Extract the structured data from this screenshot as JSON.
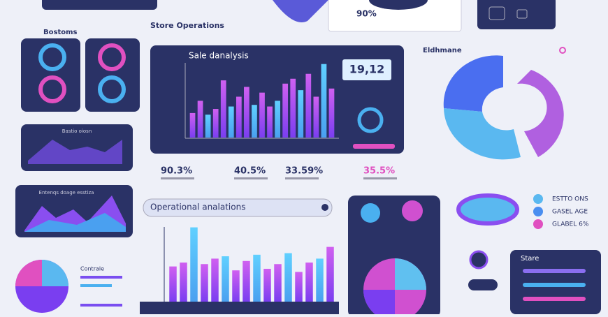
{
  "header": {
    "section": "Store Operations",
    "top_stat": "90%"
  },
  "left_panel": {
    "title": "Bostoms",
    "line_card_title": "Bastio oiosn",
    "area_card_title": "Entenqs doage esstiza",
    "bottom_title": "Contrale"
  },
  "sales": {
    "title": "Sale danalysis",
    "stat": "19,12",
    "values": [
      30,
      45,
      28,
      35,
      70,
      38,
      50,
      62,
      40,
      55,
      38,
      45,
      66,
      72,
      58,
      78,
      50,
      90,
      60
    ]
  },
  "stats": [
    "90.3%",
    "40.5%",
    "33.59%",
    "35.5%"
  ],
  "operational": {
    "title": "Operational analations",
    "values": [
      45,
      50,
      95,
      48,
      55,
      58,
      40,
      52,
      60,
      42,
      48,
      62,
      38,
      50,
      55,
      70
    ]
  },
  "donut": {
    "title": "Eldhmane"
  },
  "legend": [
    "ESTTO ONS",
    "GASEL AGE",
    "GLABEL 6%"
  ],
  "store": {
    "title": "Stare"
  }
}
